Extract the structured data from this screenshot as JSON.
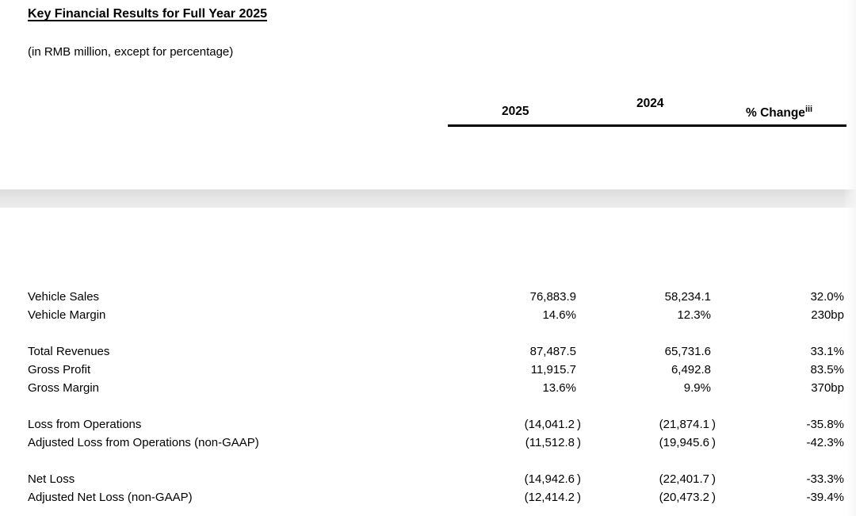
{
  "document": {
    "title": "Key Financial Results for Full Year 2025",
    "subtitle": "(in RMB million, except for percentage)"
  },
  "table": {
    "columns": {
      "col_2025": "2025",
      "col_2024": "2024",
      "col_change": "% Change",
      "col_change_sup": "iii"
    },
    "rows": [
      {
        "label": "Vehicle Sales",
        "y2025": "76,883.9",
        "y2024": "58,234.1",
        "change": "32.0%"
      },
      {
        "label": "Vehicle Margin",
        "y2025": "14.6%",
        "y2024": "12.3%",
        "change": "230bp"
      },
      {
        "label": "Total Revenues",
        "y2025": "87,487.5",
        "y2024": "65,731.6",
        "change": "33.1%"
      },
      {
        "label": "Gross Profit",
        "y2025": "11,915.7",
        "y2024": "6,492.8",
        "change": "83.5%"
      },
      {
        "label": "Gross Margin",
        "y2025": "13.6%",
        "y2024": "9.9%",
        "change": "370bp"
      },
      {
        "label": "Loss from Operations",
        "y2025": "(14,041.2 )",
        "y2024": "(21,874.1 )",
        "change": "-35.8%"
      },
      {
        "label": "Adjusted Loss from Operations (non-GAAP)",
        "y2025": "(11,512.8 )",
        "y2024": "(19,945.6 )",
        "change": "-42.3%"
      },
      {
        "label": "Net Loss",
        "y2025": "(14,942.6 )",
        "y2024": "(22,401.7 )",
        "change": "-33.3%"
      },
      {
        "label": "Adjusted Net Loss (non-GAAP)",
        "y2025": "(12,414.2 )",
        "y2024": "(20,473.2 )",
        "change": "-39.4%"
      }
    ]
  }
}
